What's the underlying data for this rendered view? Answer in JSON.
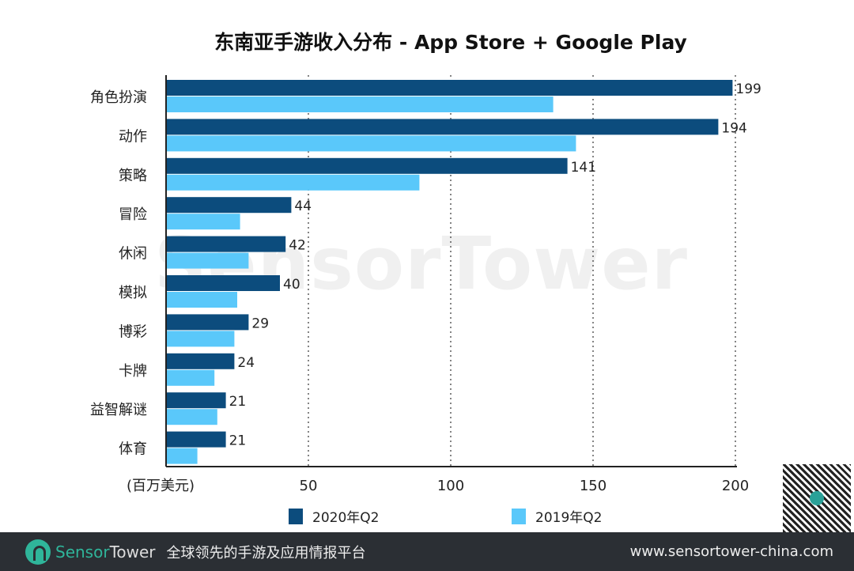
{
  "chart_data": {
    "type": "bar",
    "orientation": "horizontal",
    "title": "东南亚手游收入分布 - App Store + Google Play",
    "xlabel": "(百万美元)",
    "xlim": [
      0,
      200
    ],
    "xticks": [
      50,
      100,
      150,
      200
    ],
    "grid": "vertical dotted",
    "legend_position": "bottom",
    "categories": [
      "角色扮演",
      "动作",
      "策略",
      "冒险",
      "休闲",
      "模拟",
      "博彩",
      "卡牌",
      "益智解谜",
      "体育"
    ],
    "series": [
      {
        "name": "2020年Q2",
        "color": "#0c4c7d",
        "values": [
          199,
          194,
          141,
          44,
          42,
          40,
          29,
          24,
          21,
          21
        ],
        "labeled": true
      },
      {
        "name": "2019年Q2",
        "color": "#5ac8fa",
        "values": [
          136,
          144,
          89,
          26,
          29,
          25,
          24,
          17,
          18,
          11
        ],
        "labeled": false
      }
    ]
  },
  "watermark": "SensorTower",
  "footer": {
    "brand_a": "Sensor",
    "brand_b": "Tower",
    "slogan": "全球领先的手游及应用情报平台",
    "url": "www.sensortower-china.com"
  }
}
